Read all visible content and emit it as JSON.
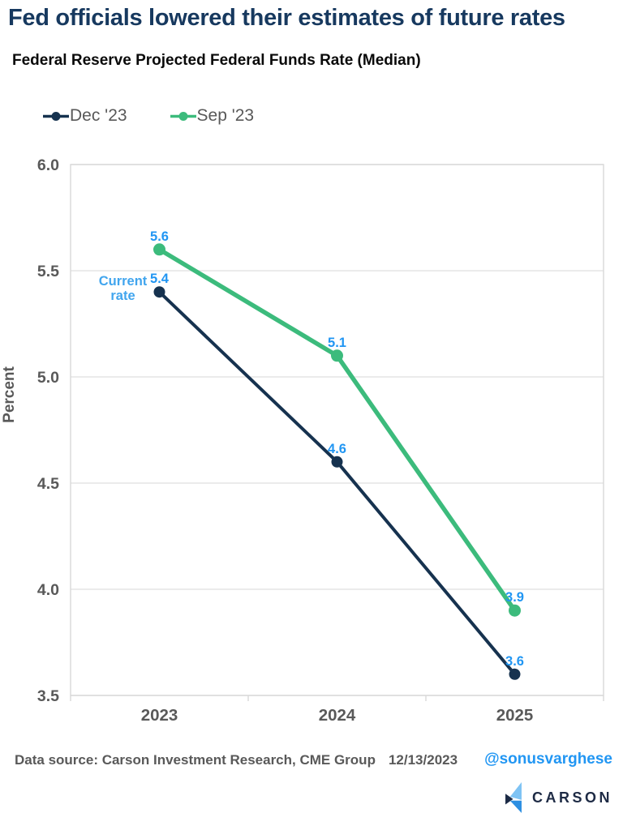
{
  "header": {
    "title": "Fed officials lowered their estimates of future rates",
    "subtitle": "Federal Reserve Projected Federal Funds Rate (Median)"
  },
  "chart_data": {
    "type": "line",
    "title": "Federal Reserve Projected Federal Funds Rate (Median)",
    "categories": [
      "2023",
      "2024",
      "2025"
    ],
    "series": [
      {
        "name": "Dec '23",
        "color": "#16324f",
        "values": [
          5.4,
          4.6,
          3.6
        ]
      },
      {
        "name": "Sep '23",
        "color": "#3cbb7c",
        "values": [
          5.6,
          5.1,
          3.9
        ]
      }
    ],
    "xlabel": "",
    "ylabel": "Percent",
    "ylim": [
      3.5,
      6.0
    ],
    "yticks": [
      "6.0",
      "5.5",
      "5.0",
      "4.5",
      "4.0",
      "3.5"
    ],
    "grid": true,
    "legend_position": "top-left",
    "data_label_color": "#2196f3",
    "annotation": {
      "text_lines": [
        "Current",
        "rate"
      ],
      "color": "#41a5ee",
      "series_index": 0,
      "point_index": 0
    }
  },
  "footer": {
    "source": "Data source: Carson Investment Research, CME Group",
    "date": "12/13/2023",
    "handle": "@sonusvarghese",
    "logo": {
      "wordmark": "CARSON",
      "colors": [
        "#7ec3f4",
        "#1b2a45",
        "#2d8fe2"
      ]
    }
  },
  "colors": {
    "title": "#17395f",
    "axis_text": "#595959",
    "grid": "#e8e8e8",
    "border": "#d9d9d9"
  }
}
